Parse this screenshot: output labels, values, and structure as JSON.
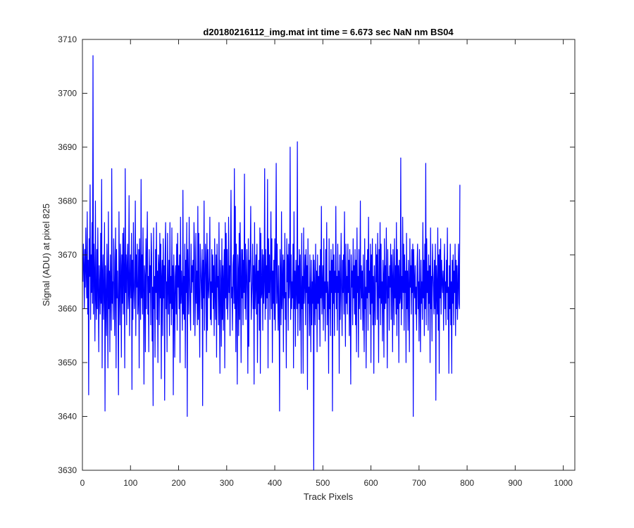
{
  "chart_data": {
    "type": "line",
    "title": "d20180216112_img.mat int time = 6.673 sec  NaN nm BS04",
    "xlabel": "Track Pixels",
    "ylabel": "Signal (ADU) at pixel 825",
    "xlim": [
      0,
      1024
    ],
    "ylim": [
      3630,
      3710
    ],
    "xticks": [
      0,
      100,
      200,
      300,
      400,
      500,
      600,
      700,
      800,
      900,
      1000
    ],
    "yticks": [
      3630,
      3640,
      3650,
      3660,
      3670,
      3680,
      3690,
      3700,
      3710
    ],
    "grid": false,
    "series_color": "#0000ff",
    "series": [
      {
        "x_start": 1,
        "x_step": 1,
        "y": [
          3665,
          3672,
          3668,
          3660,
          3671,
          3664,
          3675,
          3667,
          3662,
          3678,
          3659,
          3669,
          3644,
          3673,
          3666,
          3683,
          3658,
          3670,
          3663,
          3676,
          3661,
          3707,
          3659,
          3672,
          3666,
          3654,
          3680,
          3662,
          3658,
          3671,
          3660,
          3675,
          3663,
          3652,
          3668,
          3664,
          3659,
          3674,
          3661,
          3684,
          3649,
          3666,
          3670,
          3658,
          3663,
          3676,
          3641,
          3668,
          3662,
          3655,
          3672,
          3665,
          3649,
          3678,
          3660,
          3667,
          3652,
          3670,
          3663,
          3656,
          3686,
          3661,
          3665,
          3658,
          3673,
          3669,
          3655,
          3664,
          3675,
          3649,
          3671,
          3662,
          3667,
          3660,
          3644,
          3678,
          3664,
          3657,
          3672,
          3668,
          3651,
          3670,
          3661,
          3674,
          3659,
          3675,
          3666,
          3649,
          3686,
          3663,
          3670,
          3657,
          3668,
          3672,
          3660,
          3663,
          3681,
          3655,
          3665,
          3670,
          3662,
          3674,
          3645,
          3669,
          3658,
          3676,
          3664,
          3660,
          3666,
          3680,
          3655,
          3670,
          3664,
          3672,
          3659,
          3662,
          3671,
          3649,
          3673,
          3667,
          3658,
          3684,
          3662,
          3670,
          3659,
          3675,
          3664,
          3646,
          3668,
          3666,
          3652,
          3673,
          3660,
          3670,
          3678,
          3659,
          3666,
          3652,
          3671,
          3663,
          3668,
          3657,
          3674,
          3670,
          3654,
          3664,
          3642,
          3675,
          3660,
          3666,
          3651,
          3671,
          3663,
          3676,
          3658,
          3667,
          3650,
          3670,
          3668,
          3657,
          3674,
          3662,
          3672,
          3647,
          3666,
          3669,
          3655,
          3673,
          3662,
          3668,
          3643,
          3670,
          3676,
          3660,
          3665,
          3652,
          3674,
          3664,
          3659,
          3669,
          3655,
          3676,
          3661,
          3666,
          3657,
          3675,
          3660,
          3668,
          3644,
          3670,
          3663,
          3651,
          3666,
          3668,
          3659,
          3672,
          3656,
          3674,
          3664,
          3668,
          3660,
          3670,
          3650,
          3677,
          3661,
          3667,
          3663,
          3656,
          3682,
          3659,
          3666,
          3658,
          3672,
          3649,
          3669,
          3663,
          3676,
          3640,
          3671,
          3665,
          3659,
          3677,
          3666,
          3660,
          3656,
          3672,
          3663,
          3668,
          3665,
          3669,
          3657,
          3676,
          3671,
          3655,
          3662,
          3674,
          3661,
          3667,
          3657,
          3679,
          3658,
          3674,
          3661,
          3651,
          3672,
          3668,
          3664,
          3660,
          3671,
          3642,
          3669,
          3662,
          3680,
          3656,
          3664,
          3672,
          3668,
          3652,
          3674,
          3656,
          3671,
          3664,
          3662,
          3666,
          3677,
          3658,
          3665,
          3657,
          3671,
          3663,
          3670,
          3660,
          3668,
          3655,
          3673,
          3663,
          3658,
          3670,
          3651,
          3672,
          3664,
          3666,
          3657,
          3676,
          3662,
          3648,
          3669,
          3665,
          3653,
          3673,
          3658,
          3668,
          3656,
          3666,
          3671,
          3649,
          3676,
          3662,
          3674,
          3660,
          3671,
          3658,
          3662,
          3677,
          3663,
          3668,
          3655,
          3670,
          3682,
          3662,
          3664,
          3656,
          3668,
          3670,
          3661,
          3686,
          3660,
          3679,
          3652,
          3672,
          3663,
          3646,
          3670,
          3667,
          3655,
          3674,
          3658,
          3676,
          3666,
          3650,
          3671,
          3662,
          3671,
          3657,
          3669,
          3663,
          3685,
          3660,
          3672,
          3658,
          3665,
          3671,
          3663,
          3648,
          3673,
          3653,
          3669,
          3665,
          3670,
          3679,
          3658,
          3662,
          3665,
          3672,
          3660,
          3668,
          3646,
          3676,
          3660,
          3664,
          3670,
          3659,
          3672,
          3650,
          3667,
          3661,
          3669,
          3656,
          3675,
          3648,
          3674,
          3662,
          3663,
          3671,
          3656,
          3670,
          3661,
          3665,
          3686,
          3658,
          3671,
          3660,
          3668,
          3662,
          3684,
          3649,
          3673,
          3663,
          3670,
          3658,
          3666,
          3678,
          3660,
          3673,
          3650,
          3667,
          3661,
          3669,
          3658,
          3673,
          3656,
          3670,
          3687,
          3661,
          3672,
          3663,
          3656,
          3668,
          3660,
          3641,
          3671,
          3666,
          3657,
          3678,
          3660,
          3664,
          3670,
          3652,
          3669,
          3662,
          3674,
          3658,
          3663,
          3649,
          3673,
          3665,
          3670,
          3656,
          3672,
          3662,
          3665,
          3690,
          3658,
          3670,
          3660,
          3665,
          3662,
          3672,
          3649,
          3678,
          3660,
          3667,
          3653,
          3669,
          3664,
          3660,
          3691,
          3655,
          3668,
          3661,
          3671,
          3656,
          3670,
          3663,
          3648,
          3674,
          3660,
          3666,
          3648,
          3675,
          3661,
          3665,
          3670,
          3657,
          3671,
          3663,
          3668,
          3645,
          3673,
          3661,
          3664,
          3655,
          3670,
          3663,
          3652,
          3669,
          3657,
          3665,
          3661,
          3670,
          3630,
          3669,
          3663,
          3657,
          3672,
          3660,
          3667,
          3652,
          3670,
          3661,
          3666,
          3658,
          3668,
          3653,
          3671,
          3662,
          3679,
          3659,
          3664,
          3668,
          3656,
          3673,
          3660,
          3665,
          3654,
          3671,
          3663,
          3676,
          3657,
          3665,
          3662,
          3648,
          3673,
          3660,
          3667,
          3655,
          3671,
          3663,
          3669,
          3641,
          3672,
          3661,
          3670,
          3655,
          3667,
          3663,
          3679,
          3660,
          3666,
          3656,
          3672,
          3663,
          3667,
          3648,
          3670,
          3658,
          3664,
          3674,
          3662,
          3655,
          3669,
          3663,
          3670,
          3659,
          3678,
          3664,
          3653,
          3672,
          3661,
          3666,
          3659,
          3672,
          3663,
          3669,
          3655,
          3671,
          3660,
          3646,
          3670,
          3664,
          3667,
          3657,
          3673,
          3662,
          3668,
          3659,
          3671,
          3657,
          3669,
          3652,
          3675,
          3663,
          3666,
          3651,
          3671,
          3660,
          3664,
          3680,
          3658,
          3668,
          3662,
          3667,
          3656,
          3670,
          3660,
          3652,
          3673,
          3660,
          3664,
          3649,
          3669,
          3662,
          3671,
          3656,
          3677,
          3663,
          3667,
          3659,
          3672,
          3650,
          3670,
          3661,
          3673,
          3657,
          3666,
          3648,
          3668,
          3662,
          3657,
          3672,
          3665,
          3670,
          3658,
          3674,
          3663,
          3650,
          3671,
          3662,
          3676,
          3657,
          3672,
          3661,
          3665,
          3654,
          3669,
          3666,
          3651,
          3673,
          3660,
          3668,
          3661,
          3675,
          3663,
          3649,
          3671,
          3662,
          3666,
          3656,
          3668,
          3664,
          3672,
          3658,
          3670,
          3666,
          3652,
          3671,
          3664,
          3657,
          3673,
          3662,
          3668,
          3659,
          3676,
          3655,
          3671,
          3660,
          3668,
          3650,
          3669,
          3661,
          3662,
          3688,
          3657,
          3666,
          3660,
          3677,
          3663,
          3672,
          3656,
          3670,
          3663,
          3667,
          3650,
          3674,
          3660,
          3667,
          3656,
          3669,
          3664,
          3652,
          3673,
          3664,
          3668,
          3659,
          3671,
          3663,
          3672,
          3640,
          3671,
          3665,
          3662,
          3668,
          3659,
          3664,
          3656,
          3668,
          3672,
          3660,
          3665,
          3654,
          3671,
          3663,
          3652,
          3669,
          3661,
          3665,
          3658,
          3676,
          3662,
          3669,
          3655,
          3672,
          3660,
          3687,
          3657,
          3673,
          3663,
          3667,
          3656,
          3670,
          3661,
          3668,
          3650,
          3675,
          3660,
          3666,
          3654,
          3672,
          3667,
          3664,
          3659,
          3669,
          3660,
          3672,
          3643,
          3668,
          3664,
          3659,
          3675,
          3656,
          3670,
          3648,
          3671,
          3662,
          3673,
          3659,
          3669,
          3665,
          3663,
          3667,
          3656,
          3666,
          3672,
          3660,
          3665,
          3657,
          3669,
          3663,
          3675,
          3658,
          3664,
          3648,
          3668,
          3660,
          3672,
          3657,
          3665,
          3648,
          3669,
          3661,
          3670,
          3657,
          3667,
          3663,
          3672,
          3655,
          3669,
          3660,
          3668,
          3658,
          3664,
          3672,
          3661,
          3660,
          3683
        ]
      }
    ]
  }
}
